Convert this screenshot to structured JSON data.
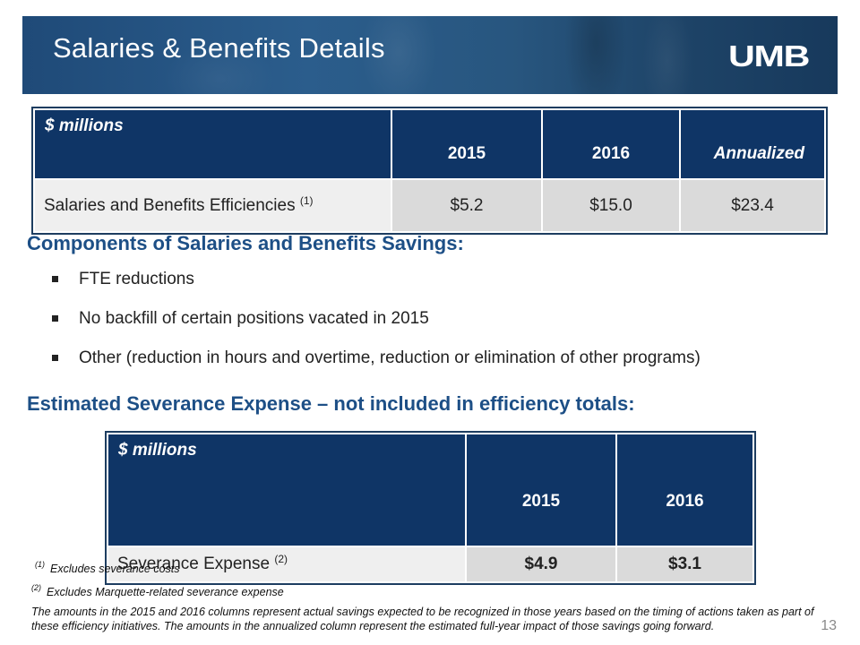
{
  "header": {
    "title": "Salaries & Benefits Details",
    "logo_text": "UMB"
  },
  "table1": {
    "label": "$ millions",
    "columns": [
      "2015",
      "2016",
      "Annualized"
    ],
    "row": {
      "label": "Salaries and Benefits Efficiencies",
      "note": "(1)",
      "values": [
        "$5.2",
        "$15.0",
        "$23.4"
      ]
    }
  },
  "section1": {
    "heading": "Components of Salaries and Benefits Savings:",
    "bullets": [
      "FTE reductions",
      "No backfill of certain positions vacated in 2015",
      "Other (reduction in hours and overtime, reduction or elimination of other programs)"
    ]
  },
  "section2": {
    "heading": "Estimated Severance Expense – not included in efficiency totals:"
  },
  "table2": {
    "label": "$ millions",
    "columns": [
      "2015",
      "2016"
    ],
    "row": {
      "label": "Severance Expense",
      "note": "(2)",
      "values": [
        "$4.9",
        "$3.1"
      ]
    }
  },
  "footnotes": [
    {
      "marker": "(1)",
      "text": "Excludes severance costs"
    },
    {
      "marker": "(2)",
      "text": "Excludes Marquette-related severance expense"
    }
  ],
  "disclaimer": "The amounts in the 2015 and 2016 columns represent actual savings expected to be recognized in those years based on the timing of actions taken as part of these efficiency initiatives. The amounts in the annualized column represent the estimated full-year impact of those savings going forward.",
  "page_number": "13",
  "colors": {
    "banner": "#1f4a78",
    "table_header": "#0f3566",
    "heading": "#1d4f86"
  }
}
